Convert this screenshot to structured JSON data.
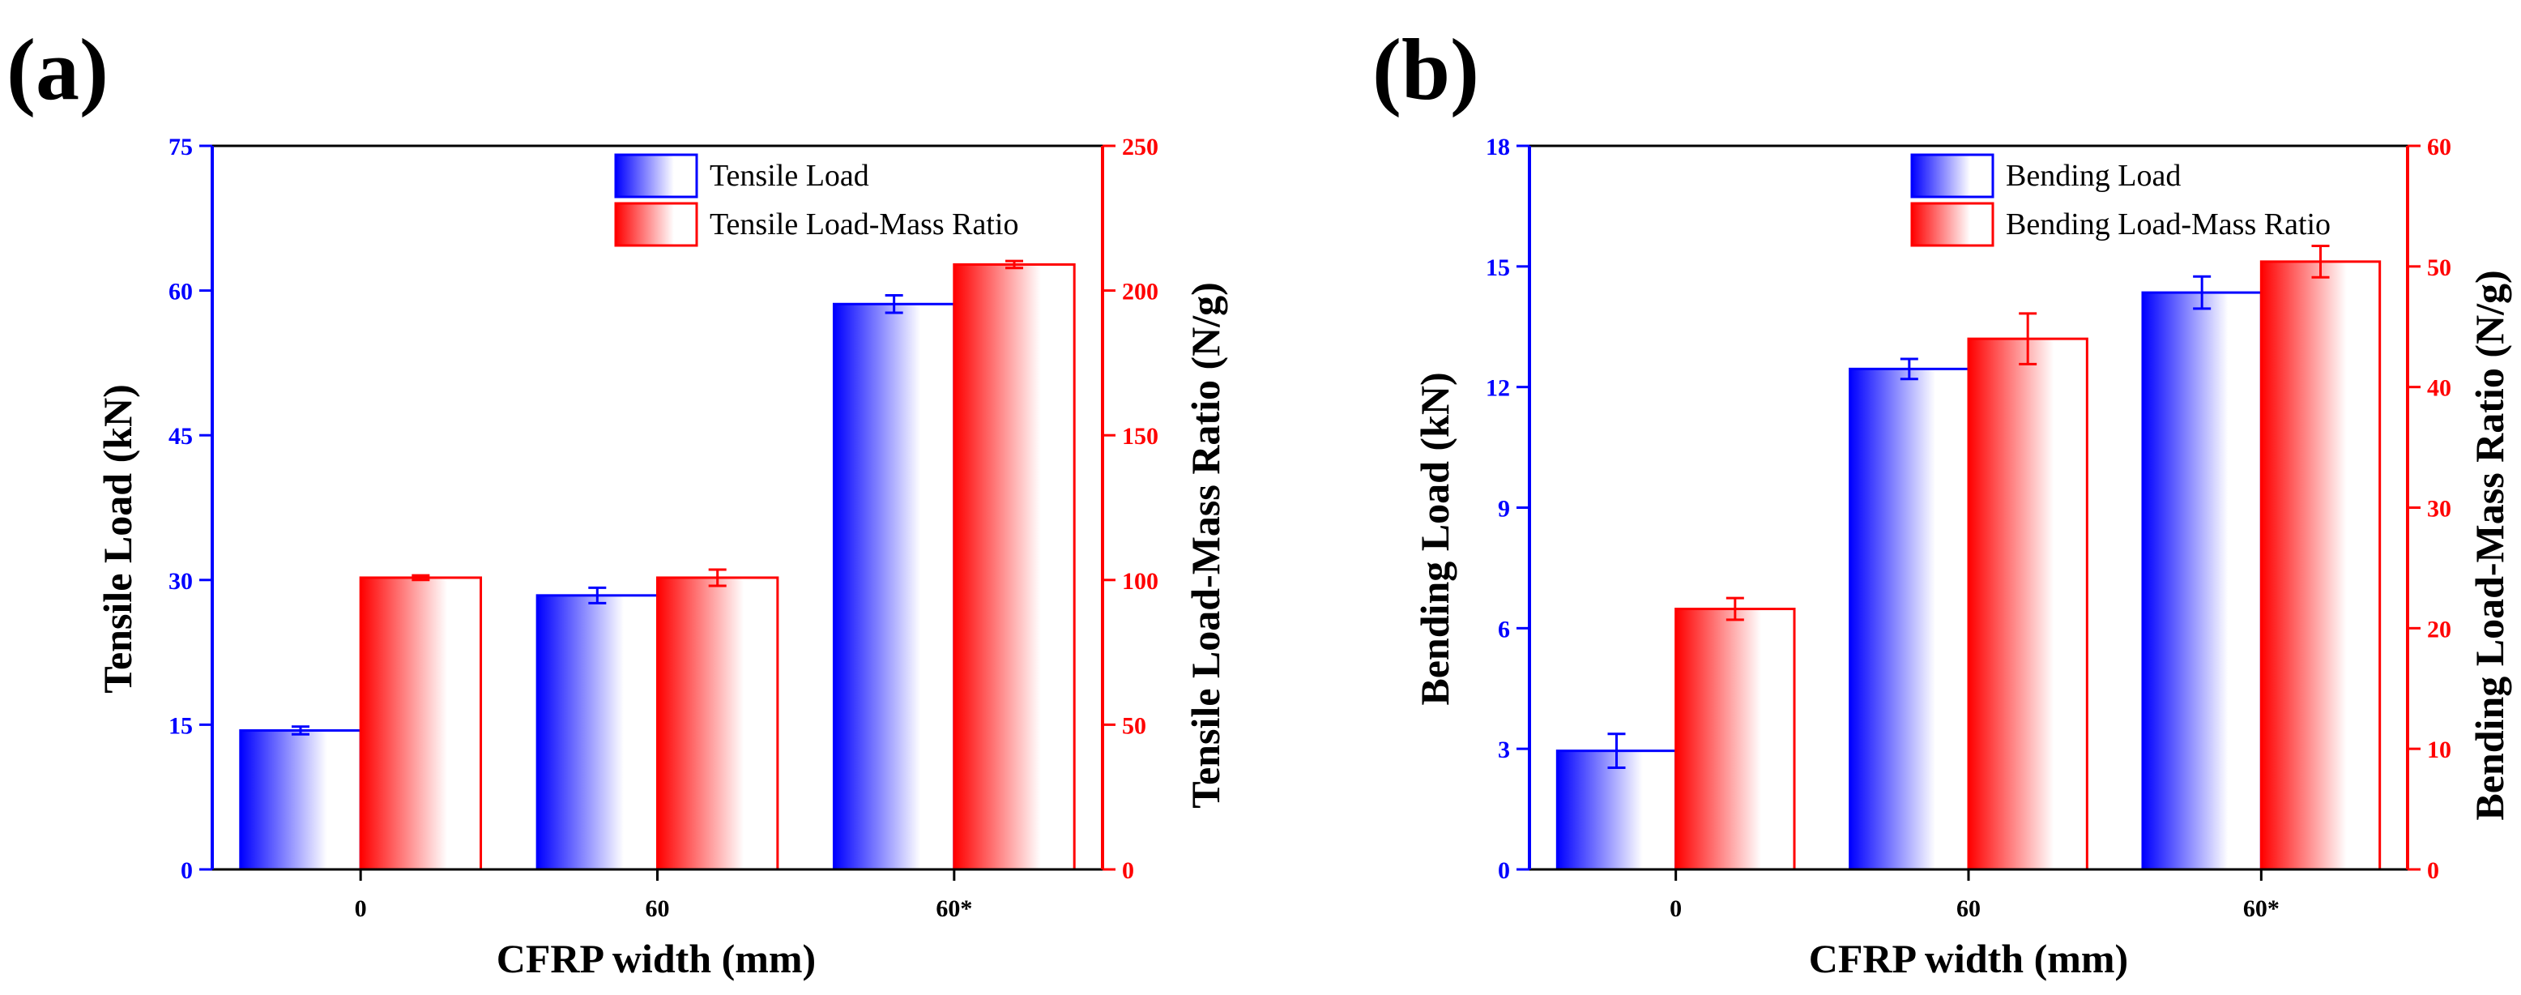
{
  "colors": {
    "left_axis": "#0000ff",
    "right_axis": "#ff0000",
    "frame": "#000000"
  },
  "chart_data": [
    {
      "type": "bar",
      "panel_label": "(a)",
      "xlabel": "CFRP width (mm)",
      "ylabel": "Tensile Load (kN)",
      "y2label": "Tensile Load-Mass Ratio (N/g)",
      "categories": [
        "0",
        "60",
        "60*"
      ],
      "ylim": [
        0,
        75
      ],
      "yticks": [
        0,
        15,
        30,
        45,
        60,
        75
      ],
      "y2lim": [
        0,
        250
      ],
      "y2ticks": [
        0,
        50,
        100,
        150,
        200,
        250
      ],
      "series": [
        {
          "name": "Tensile Load",
          "axis": "left",
          "color": "#0000ff",
          "values": [
            14.4,
            28.4,
            58.6
          ],
          "errors": [
            0.4,
            0.8,
            0.9
          ]
        },
        {
          "name": "Tensile Load-Mass Ratio",
          "axis": "right",
          "color": "#ff0000",
          "values": [
            100.8,
            100.8,
            209.0
          ],
          "errors": [
            0.8,
            2.8,
            1.2
          ]
        }
      ]
    },
    {
      "type": "bar",
      "panel_label": "(b)",
      "xlabel": "CFRP width (mm)",
      "ylabel": "Bending Load (kN)",
      "y2label": "Bending Load-Mass Ratio (N/g)",
      "categories": [
        "0",
        "60",
        "60*"
      ],
      "ylim": [
        0,
        18
      ],
      "yticks": [
        0,
        3,
        6,
        9,
        12,
        15,
        18
      ],
      "y2lim": [
        0,
        60
      ],
      "y2ticks": [
        0,
        10,
        20,
        30,
        40,
        50,
        60
      ],
      "series": [
        {
          "name": "Bending Load",
          "axis": "left",
          "color": "#0000ff",
          "values": [
            2.95,
            12.45,
            14.35
          ],
          "errors": [
            0.42,
            0.25,
            0.4
          ]
        },
        {
          "name": "Bending Load-Mass Ratio",
          "axis": "right",
          "color": "#ff0000",
          "values": [
            21.6,
            44.0,
            50.4
          ],
          "errors": [
            0.9,
            2.1,
            1.3
          ]
        }
      ]
    }
  ]
}
